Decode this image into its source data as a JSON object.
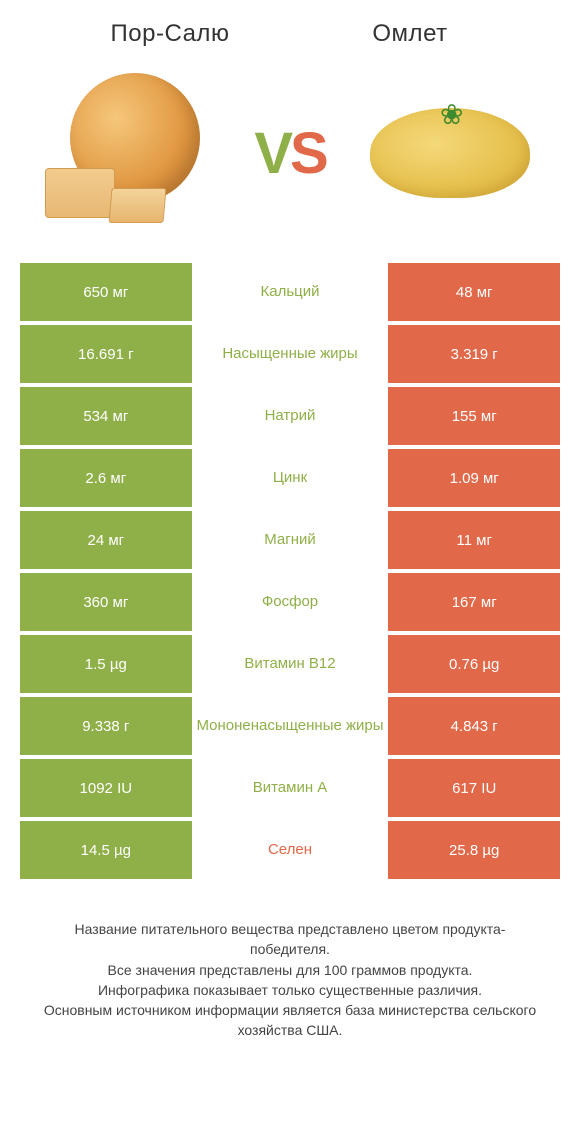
{
  "title_left": "Пор-Салю",
  "title_right": "Омлет",
  "vs": {
    "v": "V",
    "s": "S"
  },
  "colors": {
    "green": "#8fb048",
    "orange": "#e16848",
    "text_dark": "#333333",
    "white": "#ffffff"
  },
  "rows": [
    {
      "left": "650 мг",
      "label": "Кальций",
      "right": "48 мг",
      "winner": "left"
    },
    {
      "left": "16.691 г",
      "label": "Насыщенные жиры",
      "right": "3.319 г",
      "winner": "left"
    },
    {
      "left": "534 мг",
      "label": "Натрий",
      "right": "155 мг",
      "winner": "left"
    },
    {
      "left": "2.6 мг",
      "label": "Цинк",
      "right": "1.09 мг",
      "winner": "left"
    },
    {
      "left": "24 мг",
      "label": "Магний",
      "right": "11 мг",
      "winner": "left"
    },
    {
      "left": "360 мг",
      "label": "Фосфор",
      "right": "167 мг",
      "winner": "left"
    },
    {
      "left": "1.5 µg",
      "label": "Витамин B12",
      "right": "0.76 µg",
      "winner": "left"
    },
    {
      "left": "9.338 г",
      "label": "Мононенасыщенные жиры",
      "right": "4.843 г",
      "winner": "left"
    },
    {
      "left": "1092 IU",
      "label": "Витамин A",
      "right": "617 IU",
      "winner": "left"
    },
    {
      "left": "14.5 µg",
      "label": "Селен",
      "right": "25.8 µg",
      "winner": "right"
    }
  ],
  "footnote_lines": [
    "Название питательного вещества представлено цветом продукта-победителя.",
    "Все значения представлены для 100 граммов продукта.",
    "Инфографика показывает только существенные различия.",
    "Основным источником информации является база министерства сельского хозяйства США."
  ]
}
